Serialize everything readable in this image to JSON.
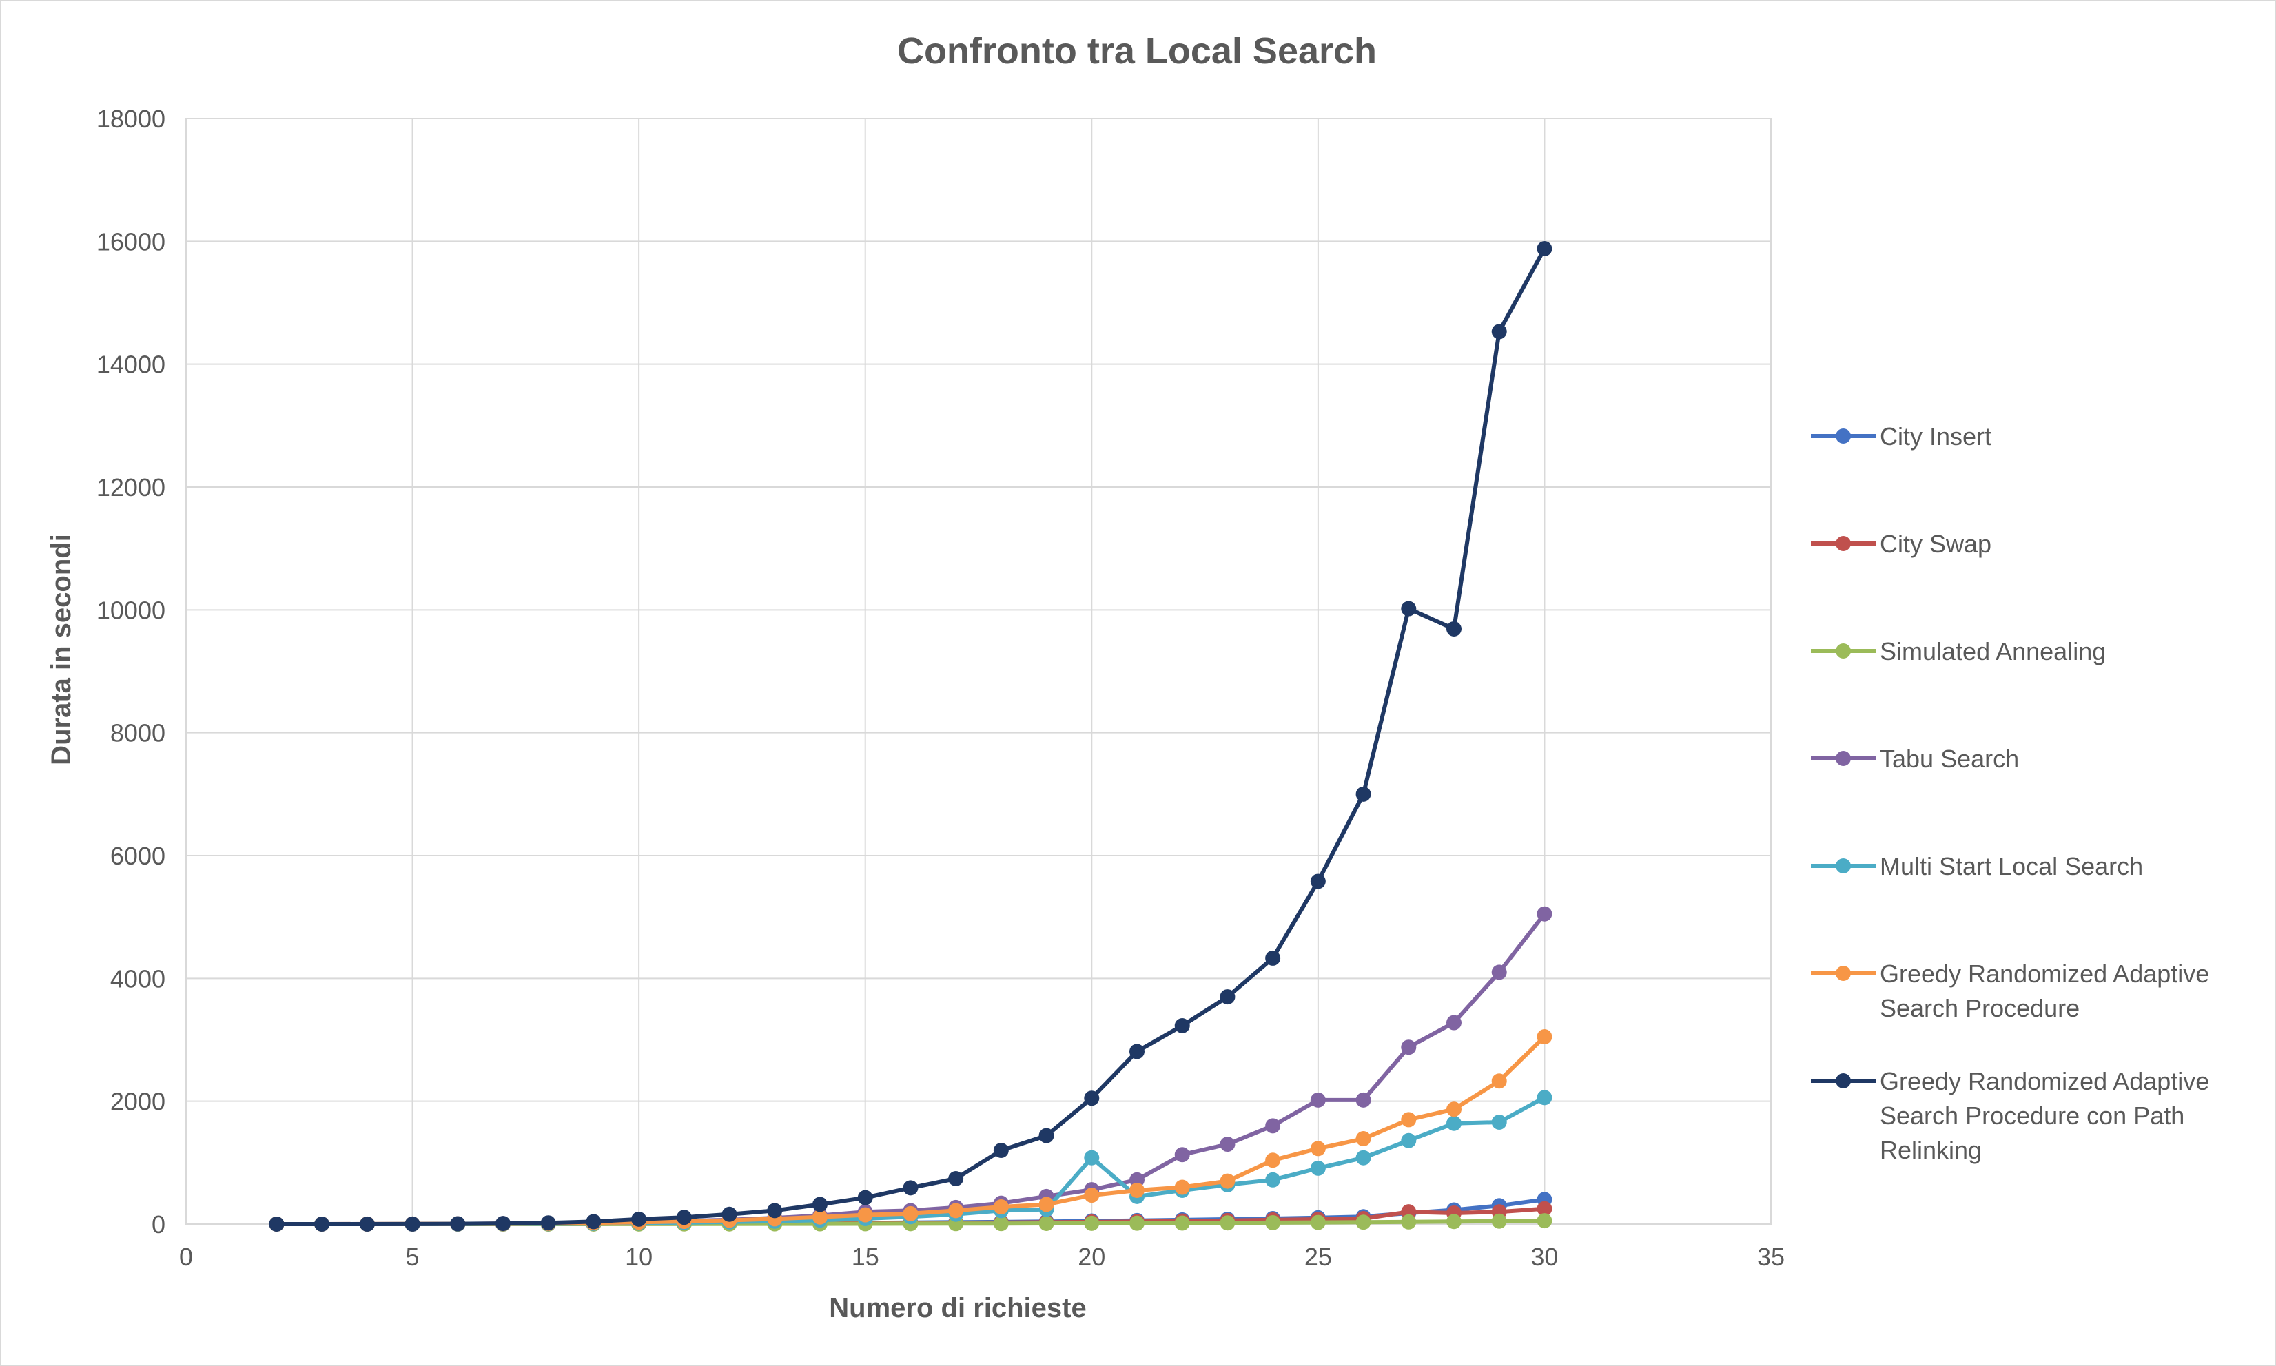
{
  "chart_data": {
    "type": "line",
    "title": "Confronto tra Local Search",
    "xlabel": "Numero di richieste",
    "ylabel": "Durata in secondi",
    "xlim": [
      0,
      35
    ],
    "ylim": [
      0,
      18000
    ],
    "x_ticks": [
      "0",
      "5",
      "10",
      "15",
      "20",
      "25",
      "30",
      "35"
    ],
    "y_ticks": [
      "0",
      "2000",
      "4000",
      "6000",
      "8000",
      "10000",
      "12000",
      "14000",
      "16000",
      "18000"
    ],
    "grid": true,
    "legend_position": "right",
    "x": [
      2,
      3,
      4,
      5,
      6,
      7,
      8,
      9,
      10,
      11,
      12,
      13,
      14,
      15,
      16,
      17,
      18,
      19,
      20,
      21,
      22,
      23,
      24,
      25,
      26,
      27,
      28,
      29,
      30
    ],
    "series": [
      {
        "name": "City Insert",
        "color": "#4472C4",
        "legend_lines": [
          "City Insert"
        ],
        "values": [
          0,
          0,
          0,
          0,
          1,
          2,
          3,
          5,
          6,
          8,
          10,
          13,
          16,
          20,
          25,
          30,
          35,
          42,
          50,
          58,
          68,
          78,
          90,
          104,
          120,
          180,
          230,
          300,
          400
        ]
      },
      {
        "name": "City Swap",
        "color": "#C0504D",
        "legend_lines": [
          "City Swap"
        ],
        "values": [
          0,
          0,
          0,
          0,
          1,
          1,
          2,
          3,
          4,
          5,
          7,
          9,
          11,
          14,
          17,
          21,
          25,
          30,
          35,
          42,
          50,
          58,
          68,
          78,
          90,
          200,
          180,
          200,
          250
        ]
      },
      {
        "name": "Simulated Annealing",
        "color": "#9BBB59",
        "legend_lines": [
          "Simulated Annealing"
        ],
        "values": [
          0,
          0,
          0,
          0,
          0,
          1,
          1,
          2,
          2,
          3,
          3,
          4,
          5,
          6,
          7,
          8,
          9,
          11,
          13,
          15,
          17,
          20,
          23,
          27,
          31,
          36,
          42,
          48,
          55
        ]
      },
      {
        "name": "Tabu Search",
        "color": "#8064A2",
        "legend_lines": [
          "Tabu Search"
        ],
        "values": [
          0,
          0,
          1,
          2,
          4,
          8,
          14,
          22,
          34,
          50,
          70,
          100,
          140,
          200,
          220,
          270,
          340,
          450,
          560,
          720,
          1130,
          1300,
          1600,
          2020,
          2020,
          2880,
          3280,
          4100,
          5050
        ]
      },
      {
        "name": "Multi Start Local Search",
        "color": "#4BACC6",
        "legend_lines": [
          "Multi Start Local Search"
        ],
        "values": [
          0,
          0,
          0,
          1,
          2,
          4,
          7,
          11,
          17,
          25,
          35,
          48,
          65,
          90,
          120,
          160,
          220,
          240,
          1080,
          450,
          550,
          640,
          720,
          910,
          1080,
          1360,
          1640,
          1660,
          2060
        ]
      },
      {
        "name": "Greedy Randomized Adaptive Search Procedure",
        "color": "#F79646",
        "legend_lines": [
          "Greedy Randomized Adaptive",
          "Search Procedure"
        ],
        "values": [
          0,
          0,
          1,
          2,
          4,
          7,
          12,
          20,
          30,
          44,
          62,
          85,
          115,
          150,
          170,
          220,
          280,
          320,
          470,
          550,
          600,
          700,
          1040,
          1230,
          1390,
          1700,
          1870,
          2330,
          3050
        ]
      },
      {
        "name": "Greedy Randomized Adaptive Search Procedure con Path Relinking",
        "color": "#1F3864",
        "legend_lines": [
          "Greedy Randomized Adaptive",
          "Search Procedure con Path",
          "Relinking"
        ],
        "values": [
          0,
          0,
          0,
          1,
          5,
          10,
          20,
          40,
          80,
          110,
          160,
          220,
          320,
          430,
          590,
          740,
          1200,
          1440,
          2050,
          2810,
          3230,
          3700,
          4330,
          5580,
          7000,
          10020,
          9690,
          14530,
          15880
        ]
      }
    ]
  }
}
